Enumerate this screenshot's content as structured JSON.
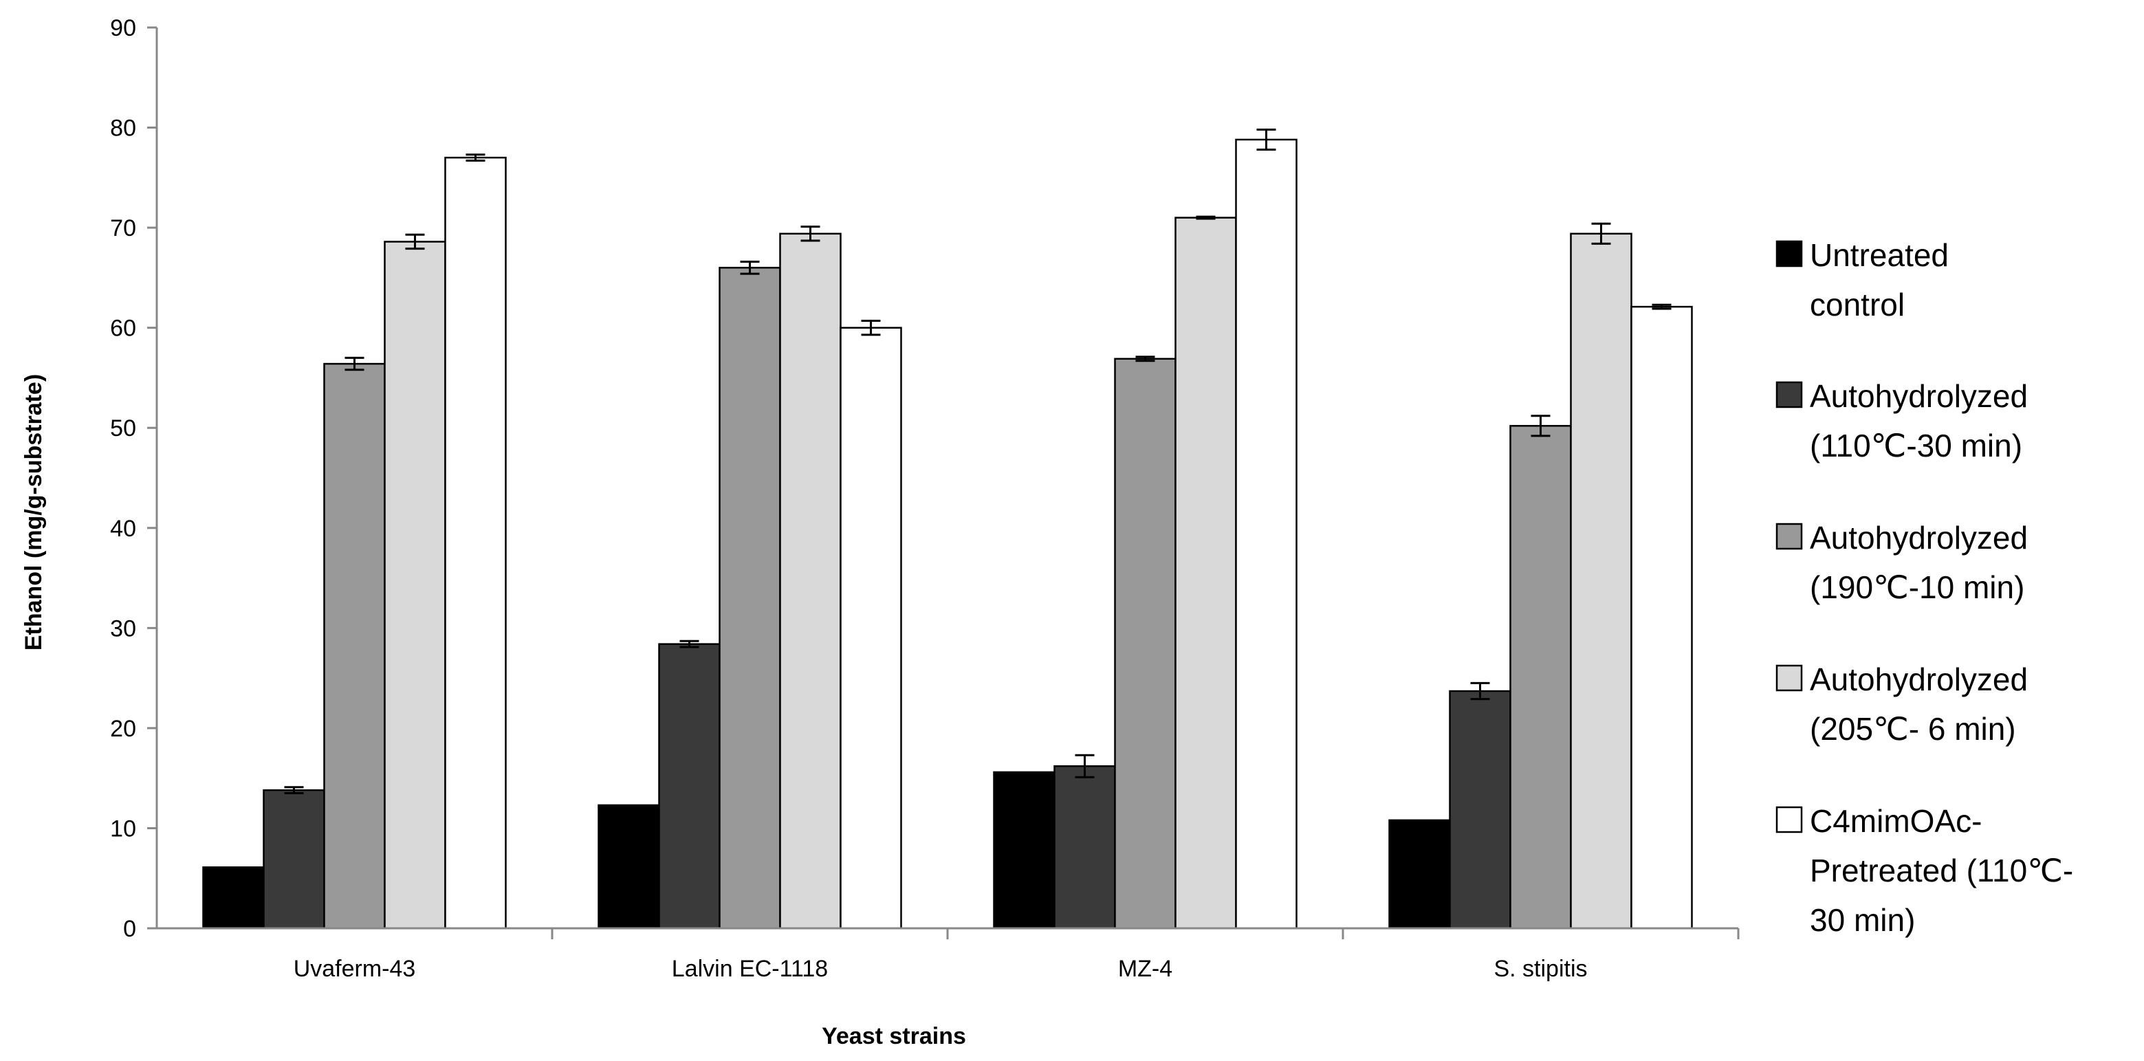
{
  "chart_data": {
    "type": "bar",
    "title": "",
    "xlabel": "Yeast strains",
    "ylabel": "Ethanol (mg/g-substrate)",
    "ylim": [
      0,
      90
    ],
    "yticks": [
      0,
      10,
      20,
      30,
      40,
      50,
      60,
      70,
      80,
      90
    ],
    "grid": false,
    "legend_position": "right",
    "categories": [
      "Uvaferm-43",
      "Lalvin EC-1118",
      "MZ-4",
      "S. stipitis"
    ],
    "series": [
      {
        "name": "Untreated control",
        "legend_lines": [
          "Untreated",
          "control"
        ],
        "color": "#000000",
        "values": [
          6.1,
          12.3,
          15.6,
          10.8
        ],
        "errors": [
          0,
          0,
          0,
          0
        ]
      },
      {
        "name": "Autohydrolyzed (110℃-30 min)",
        "legend_lines": [
          "Autohydrolyzed",
          "(110℃-30 min)"
        ],
        "color": "#3a3a3a",
        "values": [
          13.8,
          28.4,
          16.2,
          23.7
        ],
        "errors": [
          0.3,
          0.3,
          1.1,
          0.8
        ]
      },
      {
        "name": "Autohydrolyzed (190℃-10 min)",
        "legend_lines": [
          "Autohydrolyzed",
          "(190℃-10 min)"
        ],
        "color": "#999999",
        "values": [
          56.4,
          66.0,
          56.9,
          50.2
        ],
        "errors": [
          0.6,
          0.6,
          0.2,
          1.0
        ]
      },
      {
        "name": "Autohydrolyzed (205℃- 6 min)",
        "legend_lines": [
          "Autohydrolyzed",
          "(205℃- 6 min)"
        ],
        "color": "#d9d9d9",
        "values": [
          68.6,
          69.4,
          71.0,
          69.4
        ],
        "errors": [
          0.7,
          0.7,
          0.1,
          1.0
        ]
      },
      {
        "name": "C4mimOAc-Pretreated (110℃-30 min)",
        "legend_lines": [
          "C4mimOAc-",
          "Pretreated (110℃-",
          "30 min)"
        ],
        "color": "#ffffff",
        "values": [
          77.0,
          60.0,
          78.8,
          62.1
        ],
        "errors": [
          0.3,
          0.7,
          1.0,
          0.2
        ]
      }
    ]
  }
}
